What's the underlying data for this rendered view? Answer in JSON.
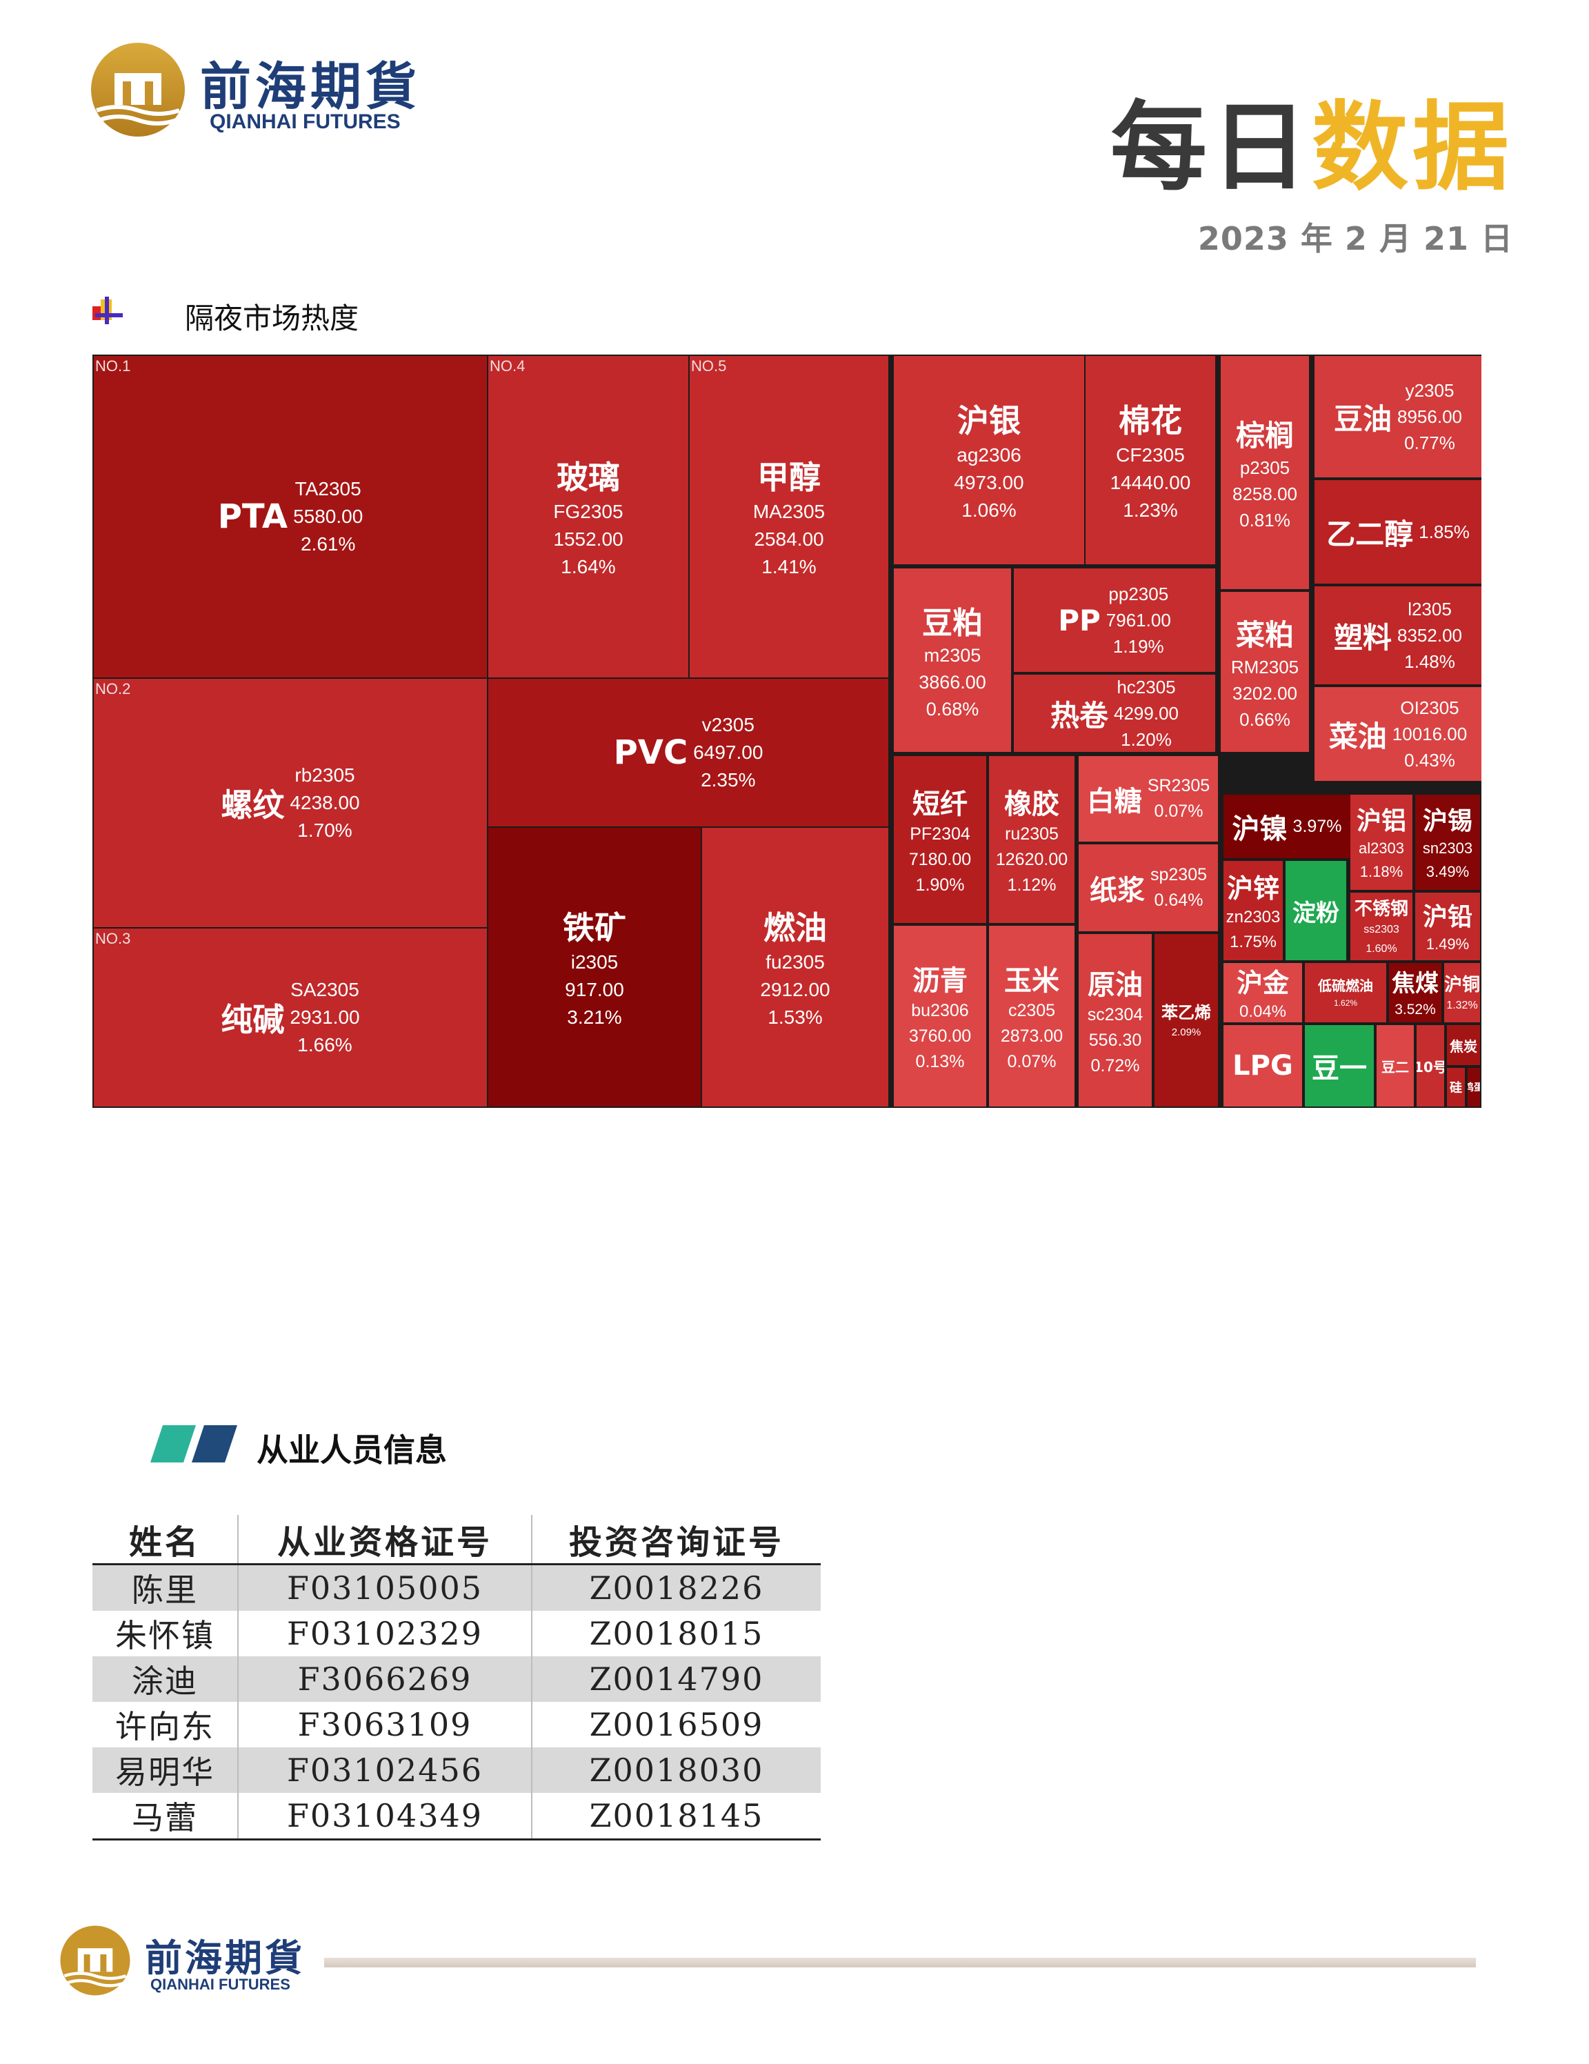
{
  "header": {
    "logo_cn": "前海期貨",
    "logo_en": "QIANHAI FUTURES",
    "title_dark": "每日",
    "title_gold": "数据",
    "date": "2023 年 2 月 21 日"
  },
  "overnight": {
    "section_title": "隔夜市场热度",
    "cells": [
      {
        "rank": "NO.1",
        "name": "PTA",
        "code": "TA2305",
        "price": "5580.00",
        "pct": "2.61%",
        "color": "#a31514"
      },
      {
        "rank": "NO.2",
        "name": "螺纹",
        "code": "rb2305",
        "price": "4238.00",
        "pct": "1.70%",
        "color": "#c0282a"
      },
      {
        "rank": "NO.3",
        "name": "纯碱",
        "code": "SA2305",
        "price": "2931.00",
        "pct": "1.66%",
        "color": "#c0282a"
      },
      {
        "rank": "NO.4",
        "name": "玻璃",
        "code": "FG2305",
        "price": "1552.00",
        "pct": "1.64%",
        "color": "#c0282a"
      },
      {
        "rank": "NO.5",
        "name": "甲醇",
        "code": "MA2305",
        "price": "2584.00",
        "pct": "1.41%",
        "color": "#c42a2b"
      },
      {
        "name": "PVC",
        "code": "v2305",
        "price": "6497.00",
        "pct": "2.35%",
        "color": "#a81617"
      },
      {
        "name": "铁矿",
        "code": "i2305",
        "price": "917.00",
        "pct": "3.21%",
        "color": "#850606"
      },
      {
        "name": "燃油",
        "code": "fu2305",
        "price": "2912.00",
        "pct": "1.53%",
        "color": "#c42a2b"
      },
      {
        "name": "沪银",
        "code": "ag2306",
        "price": "4973.00",
        "pct": "1.06%",
        "color": "#cd3233"
      },
      {
        "name": "棉花",
        "code": "CF2305",
        "price": "14440.00",
        "pct": "1.23%",
        "color": "#c62d2e"
      },
      {
        "name": "棕榈",
        "code": "p2305",
        "price": "8258.00",
        "pct": "0.81%",
        "color": "#d33b3c"
      },
      {
        "name": "豆油",
        "code": "y2305",
        "price": "8956.00",
        "pct": "0.77%",
        "color": "#d33b3c"
      },
      {
        "name": "乙二醇",
        "pct": "1.85%",
        "color": "#bb2223"
      },
      {
        "name": "豆粕",
        "code": "m2305",
        "price": "3866.00",
        "pct": "0.68%",
        "color": "#d63e3f"
      },
      {
        "name": "PP",
        "code": "pp2305",
        "price": "7961.00",
        "pct": "1.19%",
        "color": "#c62d2e"
      },
      {
        "name": "热卷",
        "code": "hc2305",
        "price": "4299.00",
        "pct": "1.20%",
        "color": "#c62d2e"
      },
      {
        "name": "菜粕",
        "code": "RM2305",
        "price": "3202.00",
        "pct": "0.66%",
        "color": "#d63e3f"
      },
      {
        "name": "塑料",
        "code": "l2305",
        "price": "8352.00",
        "pct": "1.48%",
        "color": "#c0282a"
      },
      {
        "name": "菜油",
        "code": "OI2305",
        "price": "10016.00",
        "pct": "0.43%",
        "color": "#d94344"
      },
      {
        "name": "短纤",
        "code": "PF2304",
        "price": "7180.00",
        "pct": "1.90%",
        "color": "#b51e1f"
      },
      {
        "name": "橡胶",
        "code": "ru2305",
        "price": "12620.00",
        "pct": "1.12%",
        "color": "#c62d2e"
      },
      {
        "name": "白糖",
        "code": "SR2305",
        "pct": "0.07%",
        "color": "#dc4647"
      },
      {
        "name": "纸浆",
        "code": "sp2305",
        "pct": "0.64%",
        "color": "#d63e3f"
      },
      {
        "name": "沥青",
        "code": "bu2306",
        "price": "3760.00",
        "pct": "0.13%",
        "color": "#dc4647"
      },
      {
        "name": "玉米",
        "code": "c2305",
        "price": "2873.00",
        "pct": "0.07%",
        "color": "#dc4647"
      },
      {
        "name": "原油",
        "code": "sc2304",
        "price": "556.30",
        "pct": "0.72%",
        "color": "#d63e3f"
      },
      {
        "name": "苯乙烯",
        "pct": "2.09%",
        "color": "#a31514"
      },
      {
        "name": "沪镍",
        "pct": "3.97%",
        "color": "#7a0202"
      },
      {
        "name": "沪锌",
        "code": "zn2303",
        "pct": "1.75%",
        "color": "#bb2223"
      },
      {
        "name": "淀粉",
        "color": "#1fa850"
      },
      {
        "name": "沪铝",
        "code": "al2303",
        "pct": "1.18%",
        "color": "#c62d2e"
      },
      {
        "name": "沪锡",
        "code": "sn2303",
        "pct": "3.49%",
        "color": "#850606"
      },
      {
        "name": "不锈钢",
        "code": "ss2303",
        "pct": "1.60%",
        "color": "#c0282a"
      },
      {
        "name": "沪铅",
        "pct": "1.49%",
        "color": "#c0282a"
      },
      {
        "name": "沪金",
        "pct": "0.04%",
        "color": "#dc4647"
      },
      {
        "name": "低硫燃油",
        "pct": "1.62%",
        "color": "#c0282a"
      },
      {
        "name": "焦煤",
        "pct": "3.52%",
        "color": "#850606"
      },
      {
        "name": "沪铜",
        "pct": "1.32%",
        "color": "#c62d2e"
      },
      {
        "name": "LPG",
        "color": "#dc4647"
      },
      {
        "name": "豆一",
        "color": "#1fa850"
      },
      {
        "name": "豆二",
        "color": "#dc4647"
      },
      {
        "name": "10号",
        "color": "#c62d2e"
      },
      {
        "name": "焦炭",
        "color": "#a31514"
      },
      {
        "name": "硅",
        "color": "#b51e1f"
      },
      {
        "name": "鸡蛋",
        "color": "#850606"
      }
    ]
  },
  "staff": {
    "section_title": "从业人员信息",
    "headers": [
      "姓名",
      "从业资格证号",
      "投资咨询证号"
    ],
    "rows": [
      [
        "陈里",
        "F03105005",
        "Z0018226"
      ],
      [
        "朱怀镇",
        "F03102329",
        "Z0018015"
      ],
      [
        "涂迪",
        "F3066269",
        "Z0014790"
      ],
      [
        "许向东",
        "F3063109",
        "Z0016509"
      ],
      [
        "易明华",
        "F03102456",
        "Z0018030"
      ],
      [
        "马蕾",
        "F03104349",
        "Z0018145"
      ]
    ]
  },
  "footer": {
    "logo_cn": "前海期貨",
    "logo_en": "QIANHAI FUTURES"
  },
  "colors": {
    "brand_blue": "#1f3e78",
    "gold": "#f0b526",
    "teal": "#2bb39a",
    "navy": "#1f4a7a"
  }
}
